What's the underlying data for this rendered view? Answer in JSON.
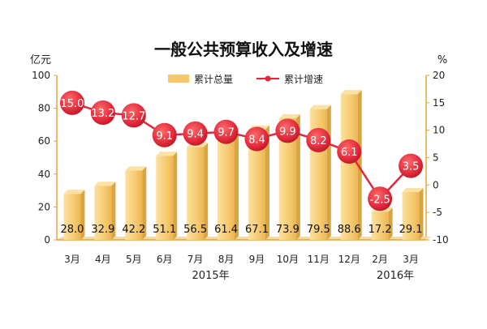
{
  "chart_data": {
    "type": "bar",
    "title": "一般公共预算收入及增速",
    "categories": [
      "3月",
      "4月",
      "5月",
      "6月",
      "7月",
      "8月",
      "9月",
      "10月",
      "11月",
      "12月",
      "2月",
      "3月"
    ],
    "year_labels": [
      "2015年",
      "2016年"
    ],
    "y_left": {
      "unit": "亿元",
      "ylim": [
        0,
        100
      ],
      "ticks": [
        0,
        20,
        40,
        60,
        80,
        100
      ]
    },
    "y_right": {
      "unit": "%",
      "ylim": [
        -10,
        20
      ],
      "ticks": [
        -10,
        -5,
        0,
        5,
        10,
        15,
        20
      ]
    },
    "series": [
      {
        "name": "累计总量",
        "type": "bar",
        "axis": "left",
        "values": [
          28.0,
          32.9,
          42.2,
          51.1,
          56.5,
          61.4,
          67.1,
          73.9,
          79.5,
          88.6,
          17.2,
          29.1
        ],
        "labels": [
          "28.0",
          "32.9",
          "42.2",
          "51.1",
          "56.5",
          "61.4",
          "67.1",
          "73.9",
          "79.5",
          "88.6",
          "17.2",
          "29.1"
        ]
      },
      {
        "name": "累计增速",
        "type": "line",
        "axis": "right",
        "values": [
          15.0,
          13.2,
          12.7,
          9.1,
          9.4,
          9.7,
          8.4,
          9.9,
          8.2,
          6.1,
          -2.5,
          3.5
        ],
        "labels": [
          "15.0",
          "13.2",
          "12.7",
          "9.1",
          "9.4",
          "9.7",
          "8.4",
          "9.9",
          "8.2",
          "6.1",
          "-2.5",
          "3.5"
        ]
      }
    ],
    "legend": "top-center",
    "grid": false,
    "colors": {
      "bar": "#F5C96B",
      "bar_top": "#FBE1A3",
      "bar_side": "#D9A540",
      "line": "#E0283A",
      "marker": "#E0283A",
      "text": "#222222"
    }
  }
}
